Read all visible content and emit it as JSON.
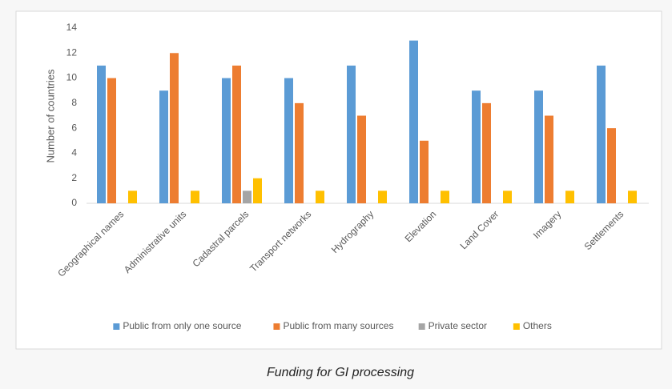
{
  "chart_data": {
    "type": "bar",
    "caption": "Funding for GI processing",
    "ylabel": "Number of countries",
    "categories": [
      "Geographical names",
      "Administrative units",
      "Cadastral parcels",
      "Transport networks",
      "Hydrography",
      "Elevation",
      "Land Cover",
      "Imagery",
      "Settlements"
    ],
    "series": [
      {
        "name": "Public from only one source",
        "color": "#5b9bd5",
        "values": [
          11,
          9,
          10,
          10,
          11,
          13,
          9,
          9,
          11
        ]
      },
      {
        "name": "Public from many sources",
        "color": "#ed7d31",
        "values": [
          10,
          12,
          11,
          8,
          7,
          5,
          8,
          7,
          6
        ]
      },
      {
        "name": "Private sector",
        "color": "#a5a5a5",
        "values": [
          0,
          0,
          1,
          0,
          0,
          0,
          0,
          0,
          0
        ]
      },
      {
        "name": "Others",
        "color": "#ffc000",
        "values": [
          1,
          1,
          2,
          1,
          1,
          1,
          1,
          1,
          1
        ]
      }
    ],
    "ylim": [
      0,
      14
    ],
    "yticks": [
      0,
      2,
      4,
      6,
      8,
      10,
      12,
      14
    ],
    "grid": false,
    "legend": "bottom"
  }
}
